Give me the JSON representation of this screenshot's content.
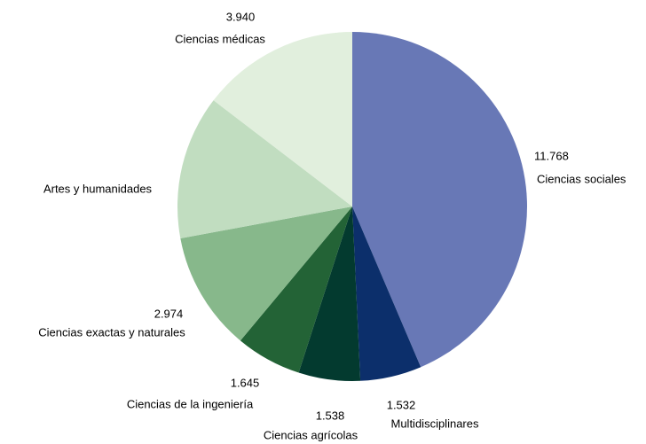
{
  "chart_data": {
    "type": "pie",
    "categories": [
      "Ciencias sociales",
      "Multidisciplinares",
      "Ciencias agrícolas",
      "Ciencias de la ingeniería",
      "Ciencias exactas y naturales",
      "Artes y humanidades",
      "Ciencias médicas"
    ],
    "values": [
      11768,
      1532,
      1538,
      1645,
      2974,
      3600,
      3940
    ],
    "value_labels": [
      "11.768",
      "1.532",
      "1.538",
      "1.645",
      "2.974",
      null,
      "3.940"
    ],
    "colors": [
      "#6878b6",
      "#0c2f6b",
      "#033a2f",
      "#236336",
      "#87b88b",
      "#c1ddc0",
      "#e1efdd"
    ]
  }
}
